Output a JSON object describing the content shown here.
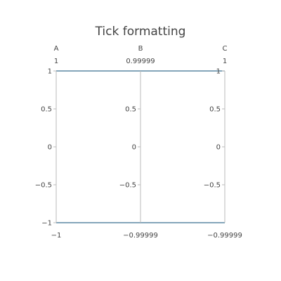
{
  "chart_data": {
    "type": "parcoords",
    "title": "Tick formatting",
    "line_color": "#3a6f90",
    "axis_color": "#bbbbbb",
    "dimensions": [
      {
        "label": "A",
        "range": [
          -1,
          1
        ],
        "ticks": [
          -1,
          -0.5,
          0,
          0.5,
          1
        ],
        "tick_labels": [
          "−1",
          "−0.5",
          "0",
          "0.5",
          "1"
        ],
        "top_label": "1",
        "bottom_label": "−1",
        "values": [
          1,
          -1
        ]
      },
      {
        "label": "B",
        "range": [
          -0.99999,
          0.99999
        ],
        "ticks": [
          -0.5,
          0,
          0.5
        ],
        "tick_labels": [
          "−0.5",
          "0",
          "0.5"
        ],
        "top_label": "0.99999",
        "bottom_label": "−0.99999",
        "values": [
          1,
          -1
        ]
      },
      {
        "label": "C",
        "range": [
          -0.99999,
          1
        ],
        "ticks": [
          -0.5,
          0,
          0.5,
          1
        ],
        "tick_labels": [
          "−0.5",
          "0",
          "0.5",
          "1"
        ],
        "top_label": "1",
        "bottom_label": "−0.99999",
        "values": [
          1,
          -1
        ]
      }
    ]
  }
}
